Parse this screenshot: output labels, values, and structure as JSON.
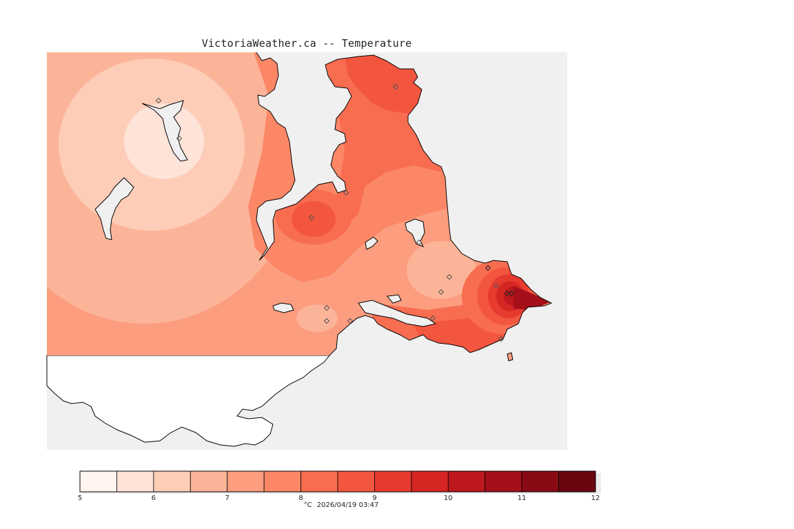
{
  "title": "VictoriaWeather.ca -- Temperature",
  "colors": {
    "water": "#f0f0f0",
    "land_outside": "#ffffff",
    "coast": "#000000",
    "station": "#555555"
  },
  "legend": {
    "unit": "°C",
    "timestamp": "2026/04/19 03:47",
    "min": 5,
    "max": 12,
    "tick_values": [
      5,
      6,
      7,
      8,
      9,
      10,
      11,
      12
    ],
    "tick_labels": [
      "5",
      "6",
      "7",
      "8",
      "9",
      "10",
      "11",
      "12"
    ],
    "bins": [
      {
        "from": 5.0,
        "to": 5.5,
        "color": "#fff4ee"
      },
      {
        "from": 5.5,
        "to": 6.0,
        "color": "#fee3d8"
      },
      {
        "from": 6.0,
        "to": 6.5,
        "color": "#fdcdb8"
      },
      {
        "from": 6.5,
        "to": 7.0,
        "color": "#fcb499"
      },
      {
        "from": 7.0,
        "to": 7.5,
        "color": "#fc9d7f"
      },
      {
        "from": 7.5,
        "to": 8.0,
        "color": "#fb8767"
      },
      {
        "from": 8.0,
        "to": 8.5,
        "color": "#f86d50"
      },
      {
        "from": 8.5,
        "to": 9.0,
        "color": "#f3563f"
      },
      {
        "from": 9.0,
        "to": 9.5,
        "color": "#e73b2f"
      },
      {
        "from": 9.5,
        "to": 10.0,
        "color": "#d52623"
      },
      {
        "from": 10.0,
        "to": 10.5,
        "color": "#bd181d"
      },
      {
        "from": 10.5,
        "to": 11.0,
        "color": "#a40f19"
      },
      {
        "from": 11.0,
        "to": 11.5,
        "color": "#880a15"
      },
      {
        "from": 11.5,
        "to": 12.0,
        "color": "#6a0610"
      }
    ]
  },
  "stations": [
    {
      "name": "",
      "temp": 6.3
    },
    {
      "name": "",
      "temp": 5.6
    },
    {
      "name": "",
      "temp": 8.9
    },
    {
      "name": "",
      "temp": 8.6
    },
    {
      "name": "",
      "temp": 7.8
    },
    {
      "name": "",
      "temp": 6.2
    },
    {
      "name": "",
      "temp": 6.1
    },
    {
      "name": "",
      "temp": 6.8
    },
    {
      "name": "",
      "temp": 7.6
    },
    {
      "name": "",
      "temp": 7.8
    },
    {
      "name": "",
      "temp": 11.2
    },
    {
      "name": "",
      "temp": 11.5
    },
    {
      "name": "",
      "temp": 11.0
    },
    {
      "name": "",
      "temp": 9.0
    },
    {
      "name": "",
      "temp": 9.2
    },
    {
      "name": "",
      "temp": 7.0
    },
    {
      "name": "",
      "temp": 6.6
    }
  ]
}
